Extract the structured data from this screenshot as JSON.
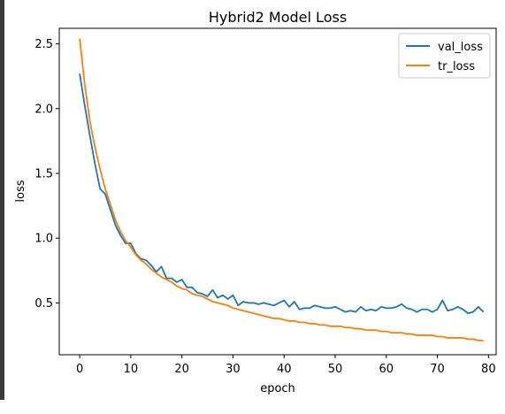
{
  "chart_data": {
    "type": "line",
    "title": "Hybrid2 Model Loss",
    "xlabel": "epoch",
    "ylabel": "loss",
    "xlim": [
      -4,
      81.5
    ],
    "ylim": [
      0.1,
      2.62
    ],
    "xticks": [
      0,
      10,
      20,
      30,
      40,
      50,
      60,
      70,
      80
    ],
    "yticks": [
      0.5,
      1.0,
      1.5,
      2.0,
      2.5
    ],
    "xtick_labels": [
      "0",
      "10",
      "20",
      "30",
      "40",
      "50",
      "60",
      "70",
      "80"
    ],
    "ytick_labels": [
      "0.5",
      "1.0",
      "1.5",
      "2.0",
      "2.5"
    ],
    "grid": false,
    "legend_position": "top-right",
    "series": [
      {
        "name": "val_loss",
        "color": "#1f77b4",
        "values": [
          2.27,
          2.02,
          1.79,
          1.57,
          1.38,
          1.34,
          1.22,
          1.1,
          1.02,
          0.96,
          0.96,
          0.88,
          0.84,
          0.83,
          0.79,
          0.74,
          0.78,
          0.69,
          0.69,
          0.66,
          0.68,
          0.62,
          0.62,
          0.58,
          0.57,
          0.55,
          0.6,
          0.54,
          0.56,
          0.53,
          0.56,
          0.48,
          0.51,
          0.5,
          0.5,
          0.49,
          0.5,
          0.49,
          0.48,
          0.5,
          0.52,
          0.47,
          0.51,
          0.45,
          0.46,
          0.46,
          0.48,
          0.47,
          0.46,
          0.46,
          0.47,
          0.45,
          0.43,
          0.44,
          0.43,
          0.47,
          0.44,
          0.45,
          0.44,
          0.47,
          0.46,
          0.46,
          0.47,
          0.49,
          0.46,
          0.45,
          0.43,
          0.45,
          0.45,
          0.43,
          0.45,
          0.52,
          0.44,
          0.45,
          0.47,
          0.45,
          0.42,
          0.43,
          0.47,
          0.43
        ]
      },
      {
        "name": "tr_loss",
        "color": "#ff7f0e",
        "values": [
          2.54,
          2.18,
          1.9,
          1.7,
          1.53,
          1.38,
          1.26,
          1.14,
          1.05,
          0.98,
          0.93,
          0.87,
          0.83,
          0.8,
          0.76,
          0.73,
          0.7,
          0.68,
          0.66,
          0.63,
          0.61,
          0.6,
          0.57,
          0.56,
          0.55,
          0.53,
          0.51,
          0.5,
          0.49,
          0.48,
          0.46,
          0.45,
          0.44,
          0.43,
          0.42,
          0.41,
          0.4,
          0.39,
          0.38,
          0.38,
          0.37,
          0.36,
          0.36,
          0.35,
          0.35,
          0.34,
          0.34,
          0.33,
          0.33,
          0.32,
          0.32,
          0.32,
          0.31,
          0.31,
          0.3,
          0.3,
          0.29,
          0.29,
          0.29,
          0.28,
          0.28,
          0.27,
          0.27,
          0.27,
          0.26,
          0.26,
          0.25,
          0.25,
          0.25,
          0.25,
          0.24,
          0.24,
          0.23,
          0.23,
          0.23,
          0.23,
          0.22,
          0.22,
          0.21,
          0.21
        ]
      }
    ]
  }
}
